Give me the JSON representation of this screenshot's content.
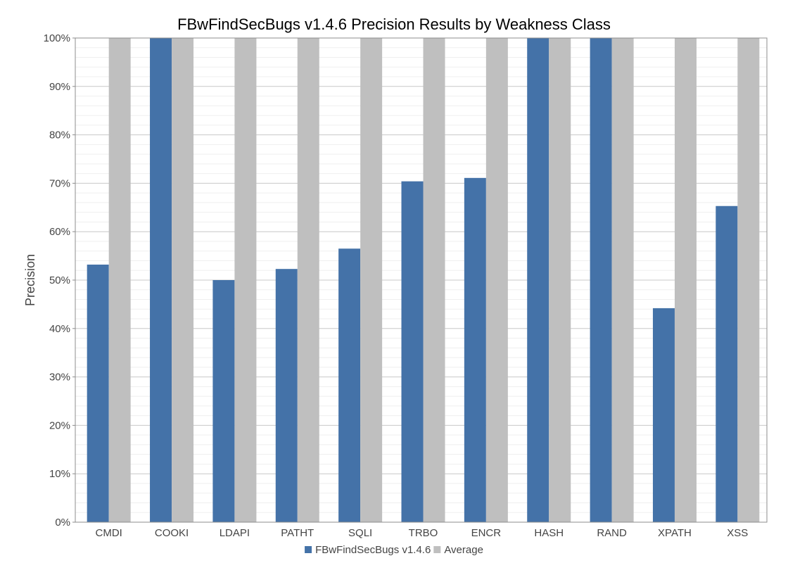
{
  "chart_data": {
    "type": "bar",
    "title": "FBwFindSecBugs v1.4.6 Precision Results by Weakness Class",
    "xlabel": "",
    "ylabel": "Precision",
    "ylim": [
      0,
      100
    ],
    "ytick_values": [
      0,
      10,
      20,
      30,
      40,
      50,
      60,
      70,
      80,
      90,
      100
    ],
    "ytick_labels": [
      "0%",
      "10%",
      "20%",
      "30%",
      "40%",
      "50%",
      "60%",
      "70%",
      "80%",
      "90%",
      "100%"
    ],
    "categories": [
      "CMDI",
      "COOKI",
      "LDAPI",
      "PATHT",
      "SQLI",
      "TRBO",
      "ENCR",
      "HASH",
      "RAND",
      "XPATH",
      "XSS"
    ],
    "series": [
      {
        "name": "FBwFindSecBugs v1.4.6",
        "color": "#4472a8",
        "values": [
          53.2,
          100,
          50,
          52.3,
          56.5,
          70.4,
          71.1,
          100,
          100,
          44.2,
          65.3
        ]
      },
      {
        "name": "Average",
        "color": "#bfbfbf",
        "values": [
          100,
          100,
          100,
          100,
          100,
          100,
          100,
          100,
          100,
          100,
          100
        ]
      }
    ],
    "grid": true,
    "minor_grid": true,
    "legend_position": "bottom-center"
  }
}
